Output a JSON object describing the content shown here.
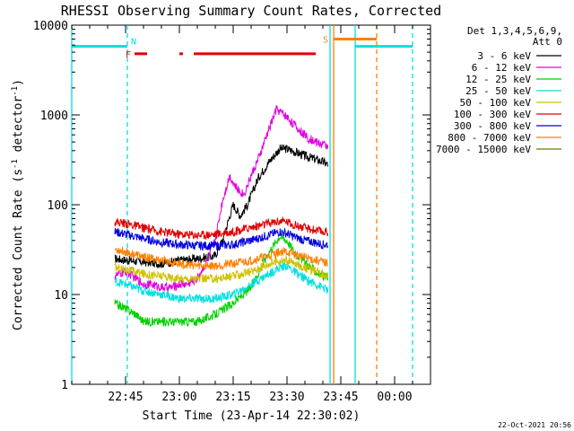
{
  "chart_data": {
    "type": "line",
    "title": "RHESSI Observing Summary Count Rates, Corrected",
    "xlabel": "Start Time (23-Apr-14 22:30:02)",
    "ylabel_main": "Corrected Count Rate (s",
    "ylabel_exp1": "-1",
    "ylabel_mid": " detector",
    "ylabel_exp2": "-1",
    "ylabel_end": ")",
    "y_scale": "log",
    "ylim": [
      1,
      10000
    ],
    "xlim_minutes": [
      0,
      100
    ],
    "x_ticks": [
      {
        "minute": 15,
        "label": "22:45"
      },
      {
        "minute": 30,
        "label": "23:00"
      },
      {
        "minute": 45,
        "label": "23:15"
      },
      {
        "minute": 60,
        "label": "23:30"
      },
      {
        "minute": 75,
        "label": "23:45"
      },
      {
        "minute": 90,
        "label": "00:00"
      }
    ],
    "y_ticks": [
      {
        "value": 1,
        "label": "1"
      },
      {
        "value": 10,
        "label": "10"
      },
      {
        "value": 100,
        "label": "100"
      },
      {
        "value": 1000,
        "label": "1000"
      },
      {
        "value": 10000,
        "label": "10000"
      }
    ],
    "legend": {
      "placement": "top-right, outside plot",
      "header_line1": "Det 1,3,4,5,6,9,",
      "header_line2": "Att 0",
      "entries": [
        {
          "label": "3 - 6 keV",
          "color": "#000000"
        },
        {
          "label": "6 - 12 keV",
          "color": "#e000e0"
        },
        {
          "label": "12 - 25 keV",
          "color": "#00d000"
        },
        {
          "label": "25 - 50 keV",
          "color": "#00e0e0"
        },
        {
          "label": "50 - 100 keV",
          "color": "#d0c000"
        },
        {
          "label": "100 - 300 keV",
          "color": "#e00000"
        },
        {
          "label": "300 - 800 keV",
          "color": "#0000e0"
        },
        {
          "label": "800 - 7000 keV",
          "color": "#ff8000"
        },
        {
          "label": "7000 - 15000 keV",
          "color": "#608000"
        }
      ]
    },
    "series": [
      {
        "name": "3 - 6 keV",
        "color": "#000000",
        "x": [
          12,
          20,
          25,
          30,
          35,
          40,
          42,
          45,
          47,
          49,
          52,
          55,
          58,
          60,
          62,
          65,
          68,
          70,
          71.5
        ],
        "y": [
          25,
          23,
          22,
          24,
          25,
          27,
          40,
          100,
          75,
          100,
          200,
          300,
          420,
          420,
          390,
          350,
          320,
          300,
          280
        ]
      },
      {
        "name": "6 - 12 keV",
        "color": "#e000e0",
        "x": [
          12,
          15,
          18,
          20,
          22,
          25,
          28,
          30,
          32,
          35,
          38,
          40,
          42,
          44,
          46,
          48,
          50,
          52,
          55,
          57,
          58,
          60,
          63,
          66,
          68,
          70,
          71.5
        ],
        "y": [
          16,
          18,
          15,
          13,
          13,
          12,
          12,
          13,
          13,
          15,
          25,
          40,
          110,
          210,
          150,
          130,
          210,
          320,
          700,
          1150,
          1100,
          950,
          700,
          550,
          500,
          470,
          450
        ]
      },
      {
        "name": "12 - 25 keV",
        "color": "#00d000",
        "x": [
          12,
          15,
          18,
          20,
          25,
          30,
          35,
          40,
          45,
          50,
          55,
          58,
          60,
          62,
          65,
          68,
          70,
          71.5
        ],
        "y": [
          8,
          7,
          6,
          5,
          5,
          5,
          5,
          6,
          8,
          12,
          30,
          45,
          40,
          30,
          23,
          18,
          16,
          15
        ]
      },
      {
        "name": "25 - 50 keV",
        "color": "#00e0e0",
        "x": [
          12,
          15,
          20,
          25,
          30,
          35,
          40,
          45,
          50,
          55,
          58,
          60,
          62,
          65,
          68,
          70,
          71.5
        ],
        "y": [
          14,
          13,
          11,
          10,
          9,
          9,
          9,
          10,
          13,
          17,
          20,
          21,
          18,
          15,
          13,
          12,
          11
        ]
      },
      {
        "name": "50 - 100 keV",
        "color": "#d0c000",
        "x": [
          12,
          15,
          20,
          25,
          30,
          35,
          40,
          45,
          50,
          55,
          58,
          60,
          62,
          65,
          68,
          70,
          71.5
        ],
        "y": [
          20,
          19,
          17,
          16,
          15,
          15,
          15,
          16,
          18,
          22,
          24,
          24,
          22,
          20,
          18,
          17,
          16
        ]
      },
      {
        "name": "100 - 300 keV",
        "color": "#e00000",
        "x": [
          12,
          15,
          20,
          25,
          30,
          35,
          40,
          45,
          50,
          55,
          58,
          60,
          62,
          65,
          68,
          70,
          71.5
        ],
        "y": [
          65,
          62,
          55,
          50,
          47,
          46,
          47,
          50,
          56,
          62,
          66,
          65,
          60,
          55,
          52,
          50,
          50
        ]
      },
      {
        "name": "300 - 800 keV",
        "color": "#0000e0",
        "x": [
          12,
          15,
          20,
          25,
          30,
          35,
          40,
          45,
          50,
          55,
          58,
          60,
          62,
          65,
          68,
          70,
          71.5
        ],
        "y": [
          50,
          47,
          42,
          38,
          36,
          35,
          35,
          36,
          40,
          46,
          50,
          48,
          44,
          40,
          38,
          36,
          36
        ]
      },
      {
        "name": "800 - 7000 keV",
        "color": "#ff8000",
        "x": [
          12,
          15,
          20,
          25,
          30,
          35,
          40,
          45,
          50,
          55,
          58,
          60,
          62,
          65,
          68,
          70,
          71.5
        ],
        "y": [
          32,
          30,
          26,
          24,
          22,
          21,
          21,
          22,
          24,
          27,
          30,
          30,
          28,
          26,
          24,
          23,
          22
        ]
      }
    ],
    "flags": [
      {
        "name": "F",
        "label": "F",
        "color": "#e00000",
        "y_value": 4800,
        "segments": [
          [
            17.5,
            21
          ],
          [
            30,
            31
          ],
          [
            34,
            68
          ]
        ]
      },
      {
        "name": "N",
        "label": "N",
        "color": "#00e0e0",
        "y_value": 5800,
        "segments": [
          [
            0,
            15.5
          ],
          [
            79,
            95
          ]
        ]
      },
      {
        "name": "S",
        "label": "S",
        "color": "#ff8000",
        "y_value": 7000,
        "segments": [
          [
            73,
            85
          ]
        ]
      }
    ],
    "vertical_lines": [
      {
        "minute": 0,
        "color": "#00e0e0",
        "style": "solid"
      },
      {
        "minute": 15.5,
        "color": "#00e0e0",
        "style": "dashed"
      },
      {
        "minute": 72,
        "color": "#00e0e0",
        "style": "solid"
      },
      {
        "minute": 73,
        "color": "#ff8000",
        "style": "solid"
      },
      {
        "minute": 79,
        "color": "#00e0e0",
        "style": "solid"
      },
      {
        "minute": 85,
        "color": "#ff8000",
        "style": "dashed"
      },
      {
        "minute": 95,
        "color": "#00e0e0",
        "style": "dashed"
      }
    ]
  },
  "footer_timestamp": "22-Oct-2021 20:56"
}
